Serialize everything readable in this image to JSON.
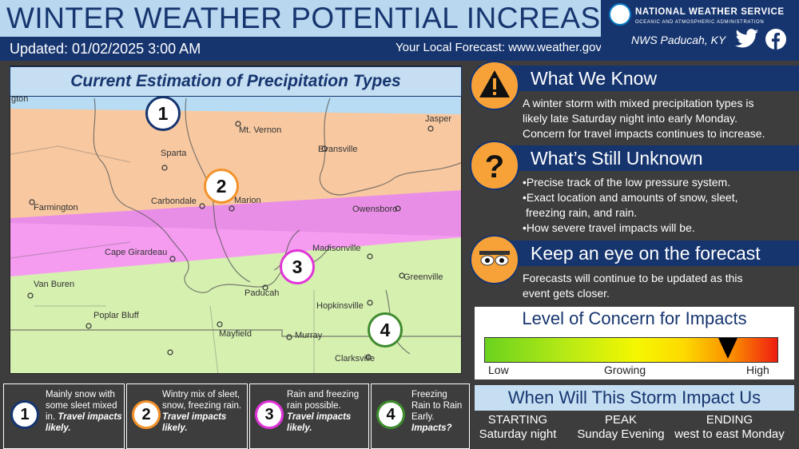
{
  "header": {
    "title": "WINTER WEATHER POTENTIAL INCREASING",
    "updated": "Updated: 01/02/2025 3:00 AM",
    "local_forecast": "Your Local Forecast: www.weather.gov",
    "agency": "NATIONAL WEATHER SERVICE",
    "agency_sub": "OCEANIC AND ATMOSPHERIC ADMINISTRATION",
    "office": "NWS Paducah, KY"
  },
  "map": {
    "title": "Current Estimation of Precipitation Types",
    "labels": {
      "washington": "gton",
      "mt_vernon": "Mt. Vernon",
      "jasper": "Jasper",
      "sparta": "Sparta",
      "evansville": "Evansville",
      "carbondale": "Carbondale",
      "marion": "Marion",
      "farmington": "Farmington",
      "owensboro": "Owensboro",
      "cape_girardeau": "Cape Girardeau",
      "madisonville": "Madisonville",
      "van_buren": "Van Buren",
      "greenville": "Greenville",
      "paducah": "Paducah",
      "hopkinsville": "Hopkinsville",
      "poplar_bluff": "Poplar Bluff",
      "mayfield": "Mayfield",
      "murray": "Murray",
      "clarksville": "Clarksville"
    },
    "zones": [
      "1",
      "2",
      "3",
      "4"
    ],
    "zone_colors": [
      "#16356f",
      "#f3922a",
      "#e034d8",
      "#3e8b2e"
    ]
  },
  "know": {
    "title": "What We Know",
    "lines": [
      "A winter storm with mixed precipitation types is",
      "likely late Saturday night into early Monday.",
      "Concern for travel impacts continues to increase."
    ]
  },
  "unknown": {
    "title": "What’s Still Unknown",
    "lines": [
      "•Precise track of the low pressure system.",
      "•Exact location and amounts of snow, sleet,",
      "  freezing rain, and rain.",
      "•How severe travel impacts will be."
    ]
  },
  "forecast": {
    "title": "Keep an eye on the forecast",
    "lines": [
      "Forecasts will continue to be updated as this",
      "event gets closer."
    ]
  },
  "concern": {
    "title": "Level of Concern for Impacts",
    "low": "Low",
    "growing": "Growing",
    "high": "High",
    "level": 0.83
  },
  "when": {
    "title": "When Will This Storm Impact Us",
    "cols": [
      {
        "head": "STARTING",
        "value": "Saturday night"
      },
      {
        "head": "PEAK",
        "value": "Sunday Evening"
      },
      {
        "head": "ENDING",
        "value": "west to east Monday"
      }
    ]
  },
  "legend": [
    {
      "num": "1",
      "text": "Mainly snow with some sleet mixed in.",
      "bold": "Travel impacts likely."
    },
    {
      "num": "2",
      "text": "Wintry mix of sleet, snow, freezing rain.",
      "bold": "Travel impacts likely."
    },
    {
      "num": "3",
      "text": "Rain and freezing rain possible.",
      "bold": "Travel impacts likely."
    },
    {
      "num": "4",
      "text": "Freezing Rain to Rain Early.",
      "bold": "Impacts?"
    }
  ]
}
